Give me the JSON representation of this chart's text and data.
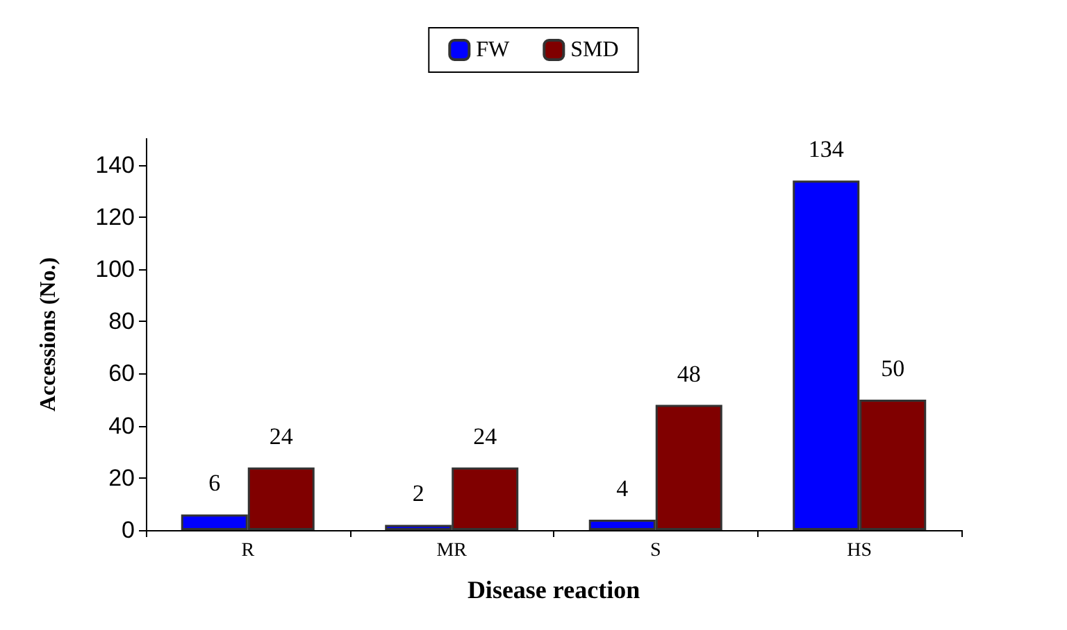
{
  "chart_data": {
    "type": "bar",
    "xlabel": "Disease reaction",
    "ylabel": "Accessions (No.)",
    "categories": [
      "R",
      "MR",
      "S",
      "HS"
    ],
    "series": [
      {
        "name": "FW",
        "color": "#0000ff",
        "values": [
          6,
          2,
          4,
          134
        ]
      },
      {
        "name": "SMD",
        "color": "#800000",
        "values": [
          24,
          24,
          48,
          50
        ]
      }
    ],
    "ylim": [
      0,
      150
    ],
    "yticks": [
      0,
      20,
      40,
      60,
      80,
      100,
      120,
      140
    ],
    "grid": false,
    "legend": "top",
    "data_labels": true
  }
}
